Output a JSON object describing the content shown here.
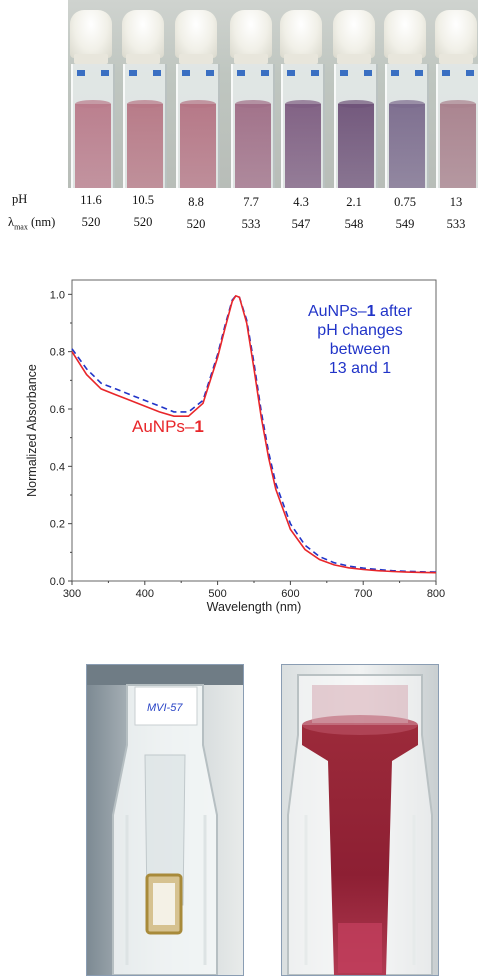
{
  "ph_row_label": "pH",
  "lambda_row_label_main": "λ",
  "lambda_row_label_sub": "max",
  "lambda_row_label_unit": "(nm)",
  "samples": [
    {
      "ph": "11.6",
      "lambda": "520",
      "color": "#b97a8a"
    },
    {
      "ph": "10.5",
      "lambda": "520",
      "color": "#b67684"
    },
    {
      "ph": "8.8",
      "lambda": "520",
      "color": "#b47383"
    },
    {
      "ph": "7.7",
      "lambda": "533",
      "color": "#9f6d86"
    },
    {
      "ph": "4.3",
      "lambda": "547",
      "color": "#7d5c80"
    },
    {
      "ph": "2.1",
      "lambda": "548",
      "color": "#6e5278"
    },
    {
      "ph": "0.75",
      "lambda": "549",
      "color": "#7a6a8c"
    },
    {
      "ph": "13",
      "lambda": "533",
      "color": "#a8808c"
    }
  ],
  "chart_data": {
    "type": "line",
    "xlabel": "Wavelength (nm)",
    "ylabel": "Normalized Absorbance",
    "xlim": [
      300,
      800
    ],
    "ylim": [
      0.0,
      1.05
    ],
    "xticks": [
      "300",
      "400",
      "500",
      "600",
      "700",
      "800"
    ],
    "yticks": [
      "0.0",
      "0.2",
      "0.4",
      "0.6",
      "0.8",
      "1.0"
    ],
    "grid": false,
    "x": [
      300,
      320,
      340,
      360,
      380,
      400,
      420,
      440,
      460,
      480,
      500,
      510,
      520,
      525,
      530,
      540,
      550,
      560,
      570,
      580,
      600,
      620,
      640,
      660,
      680,
      700,
      720,
      740,
      760,
      780,
      800
    ],
    "series": [
      {
        "name": "AuNPs–1",
        "label_parts": [
          "AuNPs–",
          "1"
        ],
        "color": "#e8262a",
        "dash": false,
        "values": [
          0.8,
          0.72,
          0.67,
          0.65,
          0.63,
          0.61,
          0.59,
          0.575,
          0.575,
          0.62,
          0.78,
          0.88,
          0.975,
          0.995,
          0.99,
          0.9,
          0.74,
          0.57,
          0.43,
          0.32,
          0.18,
          0.11,
          0.075,
          0.056,
          0.046,
          0.04,
          0.036,
          0.033,
          0.031,
          0.03,
          0.029
        ]
      },
      {
        "name": "AuNPs–1 after pH changes between 13 and 1",
        "label_parts": [
          "AuNPs–",
          "1",
          " after",
          "pH changes",
          "between",
          "13 and 1"
        ],
        "color": "#2134c8",
        "dash": true,
        "values": [
          0.81,
          0.74,
          0.69,
          0.67,
          0.65,
          0.63,
          0.61,
          0.59,
          0.59,
          0.63,
          0.79,
          0.89,
          0.98,
          0.995,
          0.99,
          0.91,
          0.76,
          0.59,
          0.45,
          0.34,
          0.2,
          0.125,
          0.085,
          0.064,
          0.052,
          0.045,
          0.04,
          0.036,
          0.034,
          0.032,
          0.031
        ]
      }
    ]
  },
  "handwritten_label": "MVI-57"
}
